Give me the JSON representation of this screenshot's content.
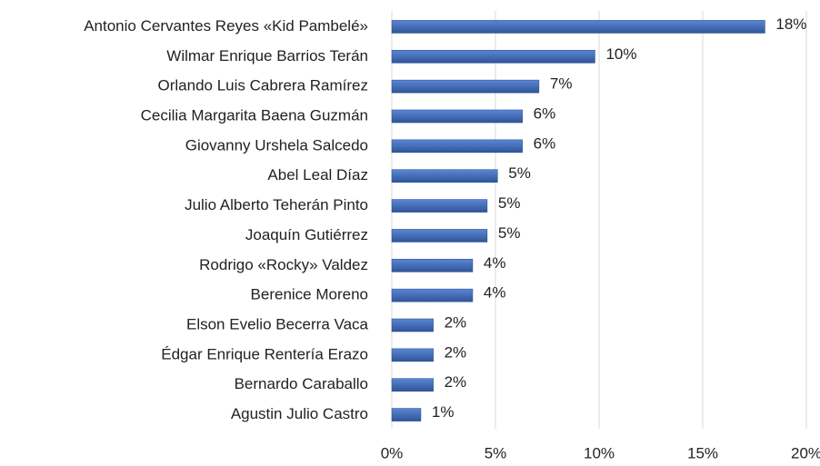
{
  "chart_data": {
    "type": "bar",
    "orientation": "horizontal",
    "categories": [
      "Antonio Cervantes Reyes «Kid Pambelé»",
      "Wilmar Enrique Barrios Terán",
      "Orlando Luis Cabrera Ramírez",
      "Cecilia Margarita Baena Guzmán",
      "Giovanny Urshela Salcedo",
      "Abel Leal Díaz",
      "Julio Alberto Teherán Pinto",
      "Joaquín Gutiérrez",
      "Rodrigo «Rocky» Valdez",
      "Berenice Moreno",
      "Elson Evelio Becerra Vaca",
      "Édgar Enrique Rentería Erazo",
      "Bernardo Caraballo",
      "Agustin Julio Castro"
    ],
    "values": [
      18,
      9.8,
      7.1,
      6.3,
      6.3,
      5.1,
      4.6,
      4.6,
      3.9,
      3.9,
      2,
      2,
      2,
      1.4
    ],
    "value_labels": [
      "18%",
      "10%",
      "7%",
      "6%",
      "6%",
      "5%",
      "5%",
      "5%",
      "4%",
      "4%",
      "2%",
      "2%",
      "2%",
      "1%"
    ],
    "color": "#4472c4",
    "xlim": [
      0,
      20
    ],
    "xticks": [
      {
        "value": 0,
        "label": "0%"
      },
      {
        "value": 5,
        "label": "5%"
      },
      {
        "value": 10,
        "label": "10%"
      },
      {
        "value": 15,
        "label": "15%"
      },
      {
        "value": 20,
        "label": "20%"
      }
    ],
    "grid": true
  }
}
